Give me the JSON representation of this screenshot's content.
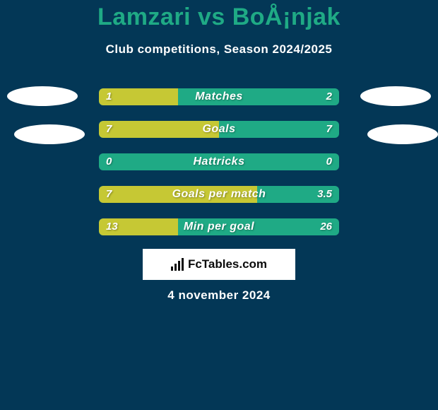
{
  "colors": {
    "background": "#033756",
    "text_white": "#ffffff",
    "title_color": "#1faa85",
    "ellipse": "#ffffff",
    "bar_base": "#1faa85",
    "bar_fill": "#c6c834",
    "logo_bg": "#ffffff",
    "logo_text": "#0b0b0b",
    "logo_bar": "#0b0b0b"
  },
  "title": "Lamzari vs BoÅ¡njak",
  "subtitle": "Club competitions, Season 2024/2025",
  "date": "4 november 2024",
  "logo": "FcTables.com",
  "bars": [
    {
      "label": "Matches",
      "left": "1",
      "right": "2",
      "fill_pct": 33
    },
    {
      "label": "Goals",
      "left": "7",
      "right": "7",
      "fill_pct": 50
    },
    {
      "label": "Hattricks",
      "left": "0",
      "right": "0",
      "fill_pct": 0
    },
    {
      "label": "Goals per match",
      "left": "7",
      "right": "3.5",
      "fill_pct": 66
    },
    {
      "label": "Min per goal",
      "left": "13",
      "right": "26",
      "fill_pct": 33
    }
  ]
}
